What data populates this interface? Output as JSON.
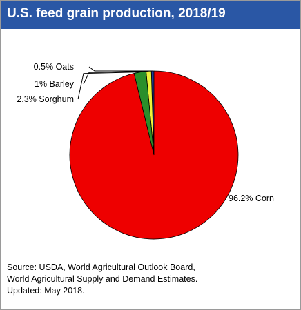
{
  "title": "U.S. feed grain production, 2018/19",
  "chart_data": {
    "type": "pie",
    "title": "U.S. feed grain production, 2018/19",
    "slices": [
      {
        "label": "Oats",
        "value": 0.5,
        "value_text": "0.5%",
        "color": "#1f3d99"
      },
      {
        "label": "Barley",
        "value": 1.0,
        "value_text": "1%",
        "color": "#eef23a"
      },
      {
        "label": "Sorghum",
        "value": 2.3,
        "value_text": "2.3%",
        "color": "#2b8f2b"
      },
      {
        "label": "Corn",
        "value": 96.2,
        "value_text": "96.2%",
        "color": "#ee0000"
      }
    ],
    "start": "12 o'clock",
    "direction": "counter-clockwise"
  },
  "source": {
    "line1": "Source: USDA, World Agricultural Outlook Board,",
    "line2": "World Agricultural Supply and Demand Estimates.",
    "line3": "Updated: May 2018."
  }
}
